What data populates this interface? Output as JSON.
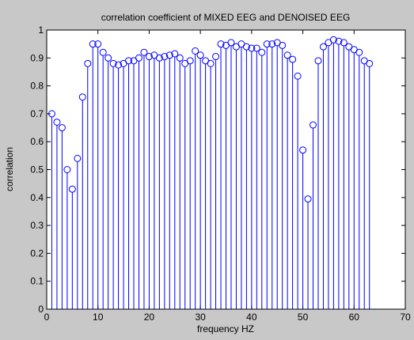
{
  "figure": {
    "background": "#c8c8c8",
    "axes_background": "#ffffff",
    "series_color": "#0000ff"
  },
  "chart_data": {
    "type": "stem",
    "title": "correlation coefficient of MIXED EEG and DENOISED EEG",
    "xlabel": "frequency  HZ",
    "ylabel": "correlation",
    "xlim": [
      0,
      70
    ],
    "ylim": [
      0,
      1
    ],
    "xticks": [
      0,
      10,
      20,
      30,
      40,
      50,
      60,
      70
    ],
    "yticks": [
      0,
      0.1,
      0.2,
      0.3,
      0.4,
      0.5,
      0.6,
      0.7,
      0.8,
      0.9,
      1
    ],
    "xtick_labels": [
      "0",
      "10",
      "20",
      "30",
      "40",
      "50",
      "60",
      "70"
    ],
    "ytick_labels": [
      "0",
      "0.1",
      "0.2",
      "0.3",
      "0.4",
      "0.5",
      "0.6",
      "0.7",
      "0.8",
      "0.9",
      "1"
    ],
    "grid": false,
    "marker": "o",
    "x": [
      1,
      2,
      3,
      4,
      5,
      6,
      7,
      8,
      9,
      10,
      11,
      12,
      13,
      14,
      15,
      16,
      17,
      18,
      19,
      20,
      21,
      22,
      23,
      24,
      25,
      26,
      27,
      28,
      29,
      30,
      31,
      32,
      33,
      34,
      35,
      36,
      37,
      38,
      39,
      40,
      41,
      42,
      43,
      44,
      45,
      46,
      47,
      48,
      49,
      50,
      51,
      52,
      53,
      54,
      55,
      56,
      57,
      58,
      59,
      60,
      61,
      62,
      63
    ],
    "y": [
      0.7,
      0.67,
      0.65,
      0.5,
      0.43,
      0.54,
      0.76,
      0.88,
      0.95,
      0.95,
      0.92,
      0.9,
      0.88,
      0.875,
      0.88,
      0.89,
      0.89,
      0.9,
      0.92,
      0.905,
      0.91,
      0.9,
      0.905,
      0.91,
      0.915,
      0.9,
      0.88,
      0.89,
      0.925,
      0.91,
      0.89,
      0.88,
      0.905,
      0.95,
      0.945,
      0.955,
      0.94,
      0.95,
      0.94,
      0.935,
      0.935,
      0.92,
      0.95,
      0.95,
      0.955,
      0.945,
      0.91,
      0.895,
      0.835,
      0.57,
      0.395,
      0.66,
      0.89,
      0.94,
      0.955,
      0.965,
      0.96,
      0.955,
      0.94,
      0.93,
      0.92,
      0.89,
      0.88
    ]
  }
}
